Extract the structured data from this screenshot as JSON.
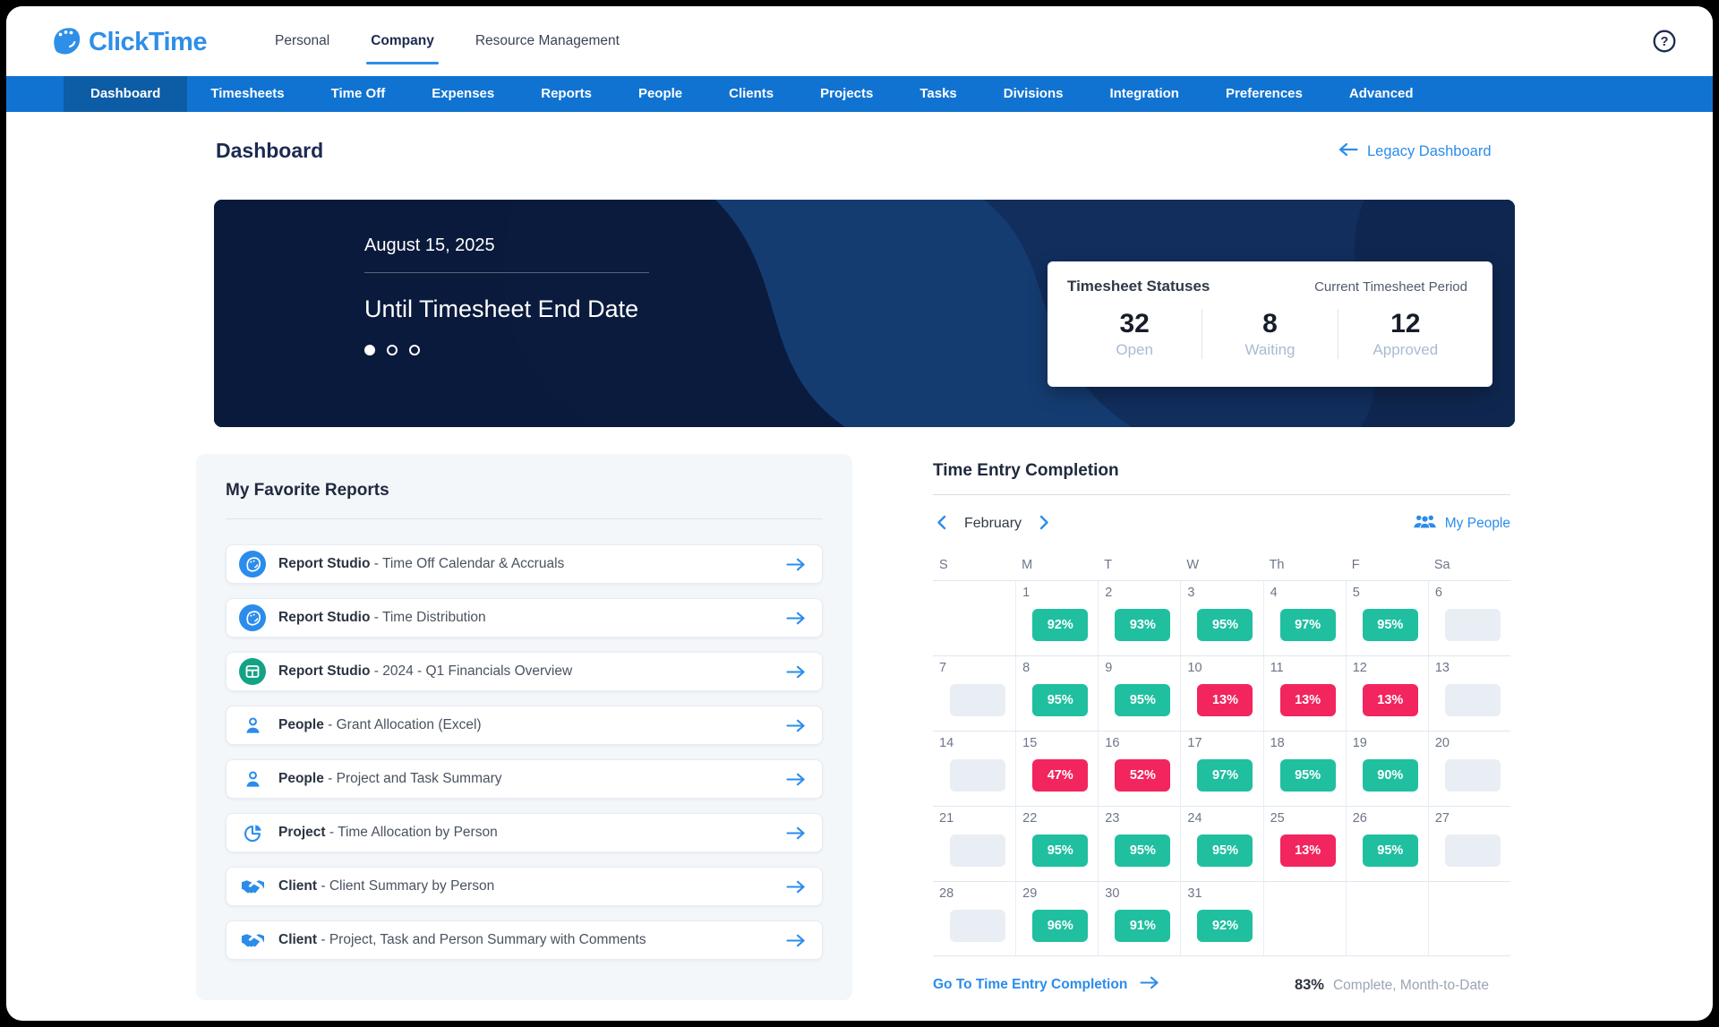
{
  "header": {
    "logo_text": "ClickTime",
    "tabs": [
      {
        "label": "Personal",
        "active": false
      },
      {
        "label": "Company",
        "active": true
      },
      {
        "label": "Resource Management",
        "active": false
      }
    ]
  },
  "nav": {
    "items": [
      {
        "label": "Dashboard",
        "active": true
      },
      {
        "label": "Timesheets",
        "active": false
      },
      {
        "label": "Time Off",
        "active": false
      },
      {
        "label": "Expenses",
        "active": false
      },
      {
        "label": "Reports",
        "active": false
      },
      {
        "label": "People",
        "active": false
      },
      {
        "label": "Clients",
        "active": false
      },
      {
        "label": "Projects",
        "active": false
      },
      {
        "label": "Tasks",
        "active": false
      },
      {
        "label": "Divisions",
        "active": false
      },
      {
        "label": "Integration",
        "active": false
      },
      {
        "label": "Preferences",
        "active": false
      },
      {
        "label": "Advanced",
        "active": false
      }
    ]
  },
  "page": {
    "title": "Dashboard",
    "legacy_link": "Legacy Dashboard"
  },
  "hero": {
    "date": "August 15, 2025",
    "countdown_label": "Until Timesheet End Date",
    "dots": {
      "count": 3,
      "active_index": 0
    },
    "statuses": {
      "title": "Timesheet Statuses",
      "subtitle": "Current Timesheet Period",
      "items": [
        {
          "value": "32",
          "label": "Open"
        },
        {
          "value": "8",
          "label": "Waiting"
        },
        {
          "value": "12",
          "label": "Approved"
        }
      ]
    }
  },
  "favorites": {
    "title": "My Favorite Reports",
    "separator": " - ",
    "reports": [
      {
        "icon": "report-studio",
        "prefix": "Report Studio",
        "name": "Time Off Calendar & Accruals"
      },
      {
        "icon": "report-studio",
        "prefix": "Report Studio",
        "name": "Time Distribution"
      },
      {
        "icon": "spreadsheet",
        "prefix": "Report Studio",
        "name": "2024 - Q1 Financials Overview"
      },
      {
        "icon": "person",
        "prefix": "People",
        "name": "Grant Allocation (Excel)"
      },
      {
        "icon": "person",
        "prefix": "People",
        "name": "Project and Task Summary"
      },
      {
        "icon": "pie-chart",
        "prefix": "Project",
        "name": "Time Allocation by Person"
      },
      {
        "icon": "handshake",
        "prefix": "Client",
        "name": "Client Summary by Person"
      },
      {
        "icon": "handshake",
        "prefix": "Client",
        "name": "Project, Task and Person Summary with Comments"
      }
    ]
  },
  "time_entry": {
    "title": "Time Entry Completion",
    "month": "February",
    "my_people_label": "My People",
    "day_headers": [
      "S",
      "M",
      "T",
      "W",
      "Th",
      "F",
      "Sa"
    ],
    "weeks": [
      [
        {
          "day": "",
          "state": "none"
        },
        {
          "day": "1",
          "pct": "92%",
          "state": "good"
        },
        {
          "day": "2",
          "pct": "93%",
          "state": "good"
        },
        {
          "day": "3",
          "pct": "95%",
          "state": "good"
        },
        {
          "day": "4",
          "pct": "97%",
          "state": "good"
        },
        {
          "day": "5",
          "pct": "95%",
          "state": "good"
        },
        {
          "day": "6",
          "state": "empty"
        }
      ],
      [
        {
          "day": "7",
          "state": "empty"
        },
        {
          "day": "8",
          "pct": "95%",
          "state": "good"
        },
        {
          "day": "9",
          "pct": "95%",
          "state": "good"
        },
        {
          "day": "10",
          "pct": "13%",
          "state": "low"
        },
        {
          "day": "11",
          "pct": "13%",
          "state": "low"
        },
        {
          "day": "12",
          "pct": "13%",
          "state": "low"
        },
        {
          "day": "13",
          "state": "empty"
        }
      ],
      [
        {
          "day": "14",
          "state": "empty"
        },
        {
          "day": "15",
          "pct": "47%",
          "state": "low"
        },
        {
          "day": "16",
          "pct": "52%",
          "state": "low"
        },
        {
          "day": "17",
          "pct": "97%",
          "state": "good"
        },
        {
          "day": "18",
          "pct": "95%",
          "state": "good"
        },
        {
          "day": "19",
          "pct": "90%",
          "state": "good"
        },
        {
          "day": "20",
          "state": "empty"
        }
      ],
      [
        {
          "day": "21",
          "state": "empty"
        },
        {
          "day": "22",
          "pct": "95%",
          "state": "good"
        },
        {
          "day": "23",
          "pct": "95%",
          "state": "good"
        },
        {
          "day": "24",
          "pct": "95%",
          "state": "good"
        },
        {
          "day": "25",
          "pct": "13%",
          "state": "low"
        },
        {
          "day": "26",
          "pct": "95%",
          "state": "good"
        },
        {
          "day": "27",
          "state": "empty"
        }
      ],
      [
        {
          "day": "28",
          "state": "empty"
        },
        {
          "day": "29",
          "pct": "96%",
          "state": "good"
        },
        {
          "day": "30",
          "pct": "91%",
          "state": "good"
        },
        {
          "day": "31",
          "pct": "92%",
          "state": "good"
        },
        {
          "day": "",
          "state": "none"
        },
        {
          "day": "",
          "state": "none"
        },
        {
          "day": "",
          "state": "none"
        }
      ]
    ],
    "footer_link": "Go To Time Entry Completion",
    "completion_value": "83%",
    "completion_label": "Complete, Month-to-Date"
  },
  "colors": {
    "accent_blue": "#2b8ceb",
    "nav_blue": "#1173d1",
    "nav_active_blue": "#0d5ca6",
    "banner_navy": "#0a1b3e",
    "complete_green": "#20bfa0",
    "incomplete_red": "#f2255e",
    "empty_gray": "#e9edf4"
  }
}
